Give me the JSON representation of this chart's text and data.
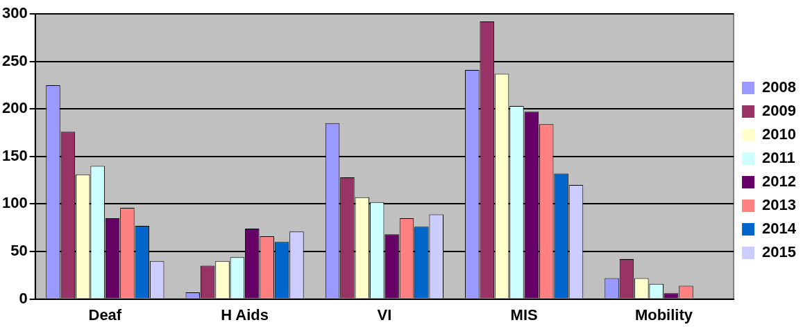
{
  "chart_data": {
    "type": "bar",
    "categories": [
      "Deaf",
      "H Aids",
      "VI",
      "MIS",
      "Mobility"
    ],
    "series": [
      {
        "name": "2008",
        "color": "#9999ff",
        "values": [
          225,
          7,
          185,
          241,
          22
        ]
      },
      {
        "name": "2009",
        "color": "#993366",
        "values": [
          176,
          35,
          128,
          292,
          42
        ]
      },
      {
        "name": "2010",
        "color": "#ffffcc",
        "values": [
          131,
          40,
          107,
          237,
          22
        ]
      },
      {
        "name": "2011",
        "color": "#ccffff",
        "values": [
          140,
          44,
          102,
          203,
          16
        ]
      },
      {
        "name": "2012",
        "color": "#660066",
        "values": [
          85,
          74,
          68,
          197,
          6
        ]
      },
      {
        "name": "2013",
        "color": "#ff8080",
        "values": [
          96,
          66,
          85,
          184,
          14
        ]
      },
      {
        "name": "2014",
        "color": "#0066cc",
        "values": [
          77,
          60,
          76,
          132,
          null
        ]
      },
      {
        "name": "2015",
        "color": "#ccccff",
        "values": [
          40,
          71,
          89,
          120,
          null
        ]
      }
    ],
    "ylim": [
      0,
      300
    ],
    "yticks": [
      0,
      50,
      100,
      150,
      200,
      250,
      300
    ],
    "grid": "y",
    "legend": "right"
  }
}
